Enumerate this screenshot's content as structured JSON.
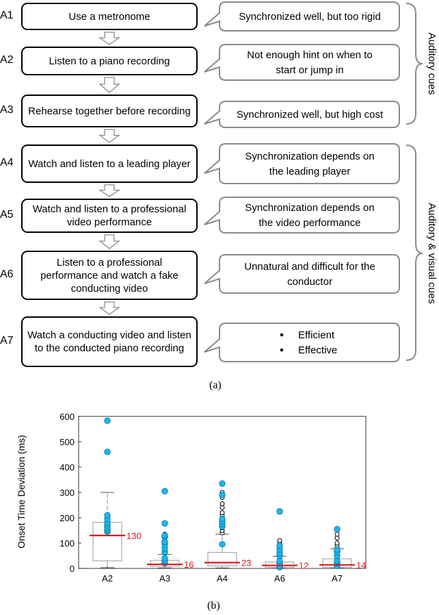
{
  "steps": [
    {
      "id": "A1",
      "text": "Use a metronome"
    },
    {
      "id": "A2",
      "text": "Listen to a piano recording"
    },
    {
      "id": "A3",
      "text": "Rehearse together before recording"
    },
    {
      "id": "A4",
      "text": "Watch and listen to a leading player"
    },
    {
      "id": "A5",
      "text": "Watch and listen to a professional video performance"
    },
    {
      "id": "A6",
      "text": "Listen to a professional performance and watch a fake conducting video"
    },
    {
      "id": "A7",
      "text": "Watch a conducting video and listen to the conducted piano recording"
    }
  ],
  "comments": [
    {
      "lines": [
        "Synchronized well, but too rigid"
      ]
    },
    {
      "lines": [
        "Not enough hint on when to",
        "start or jump in"
      ]
    },
    {
      "lines": [
        "Synchronized well, but high cost"
      ]
    },
    {
      "lines": [
        "Synchronization depends on",
        "the leading player"
      ]
    },
    {
      "lines": [
        "Synchronization depends on",
        "the video performance"
      ]
    },
    {
      "lines": [
        "Unnatural and difficult for the",
        "conductor"
      ]
    },
    {
      "lines": [
        "Efficient",
        "Effective"
      ],
      "bullets": true
    }
  ],
  "groups": {
    "auditory": "Auditory cues",
    "audiovisual": "Auditory & visual cues"
  },
  "captions": {
    "a": "(a)",
    "b": "(b)"
  },
  "chart_data": {
    "type": "box",
    "ylabel": "Onset Time Deviation (ms)",
    "ylim": [
      0,
      600
    ],
    "yticks": [
      0,
      100,
      200,
      300,
      400,
      500,
      600
    ],
    "categories": [
      "A2",
      "A3",
      "A4",
      "A6",
      "A7"
    ],
    "boxes": [
      {
        "q1": 30,
        "q3": 182,
        "median": 130,
        "whisker_low": 3,
        "whisker_high": 300,
        "median_label": "130",
        "outliers_open": [
          150,
          160,
          165,
          175,
          185,
          190,
          200
        ],
        "outliers_filled": [
          145,
          150,
          160,
          170,
          180,
          195,
          210,
          460,
          583
        ]
      },
      {
        "q1": 8,
        "q3": 32,
        "median": 16,
        "whisker_low": 2,
        "whisker_high": 55,
        "median_label": "16",
        "outliers_open": [
          60,
          70,
          80,
          90,
          100,
          110,
          125,
          130,
          135
        ],
        "outliers_filled": [
          20,
          30,
          40,
          65,
          80,
          95,
          105,
          125,
          130,
          178,
          305
        ]
      },
      {
        "q1": 10,
        "q3": 63,
        "median": 23,
        "whisker_low": 2,
        "whisker_high": 135,
        "median_label": "23",
        "outliers_open": [
          140,
          150,
          160,
          170,
          180,
          190,
          200,
          210,
          220,
          240,
          255,
          280,
          300
        ],
        "outliers_filled": [
          95,
          165,
          175,
          185,
          195,
          290,
          335
        ]
      },
      {
        "q1": 5,
        "q3": 25,
        "median": 12,
        "whisker_low": 1,
        "whisker_high": 48,
        "median_label": "12",
        "outliers_open": [
          55,
          60,
          70,
          80,
          90,
          100,
          110
        ],
        "outliers_filled": [
          5,
          10,
          20,
          30,
          50,
          60,
          75,
          90,
          225
        ]
      },
      {
        "q1": 5,
        "q3": 38,
        "median": 14,
        "whisker_low": 1,
        "whisker_high": 78,
        "median_label": "14",
        "outliers_open": [
          80,
          90,
          100,
          120,
          135
        ],
        "outliers_filled": [
          10,
          20,
          30,
          50,
          65,
          75,
          155
        ]
      }
    ]
  }
}
